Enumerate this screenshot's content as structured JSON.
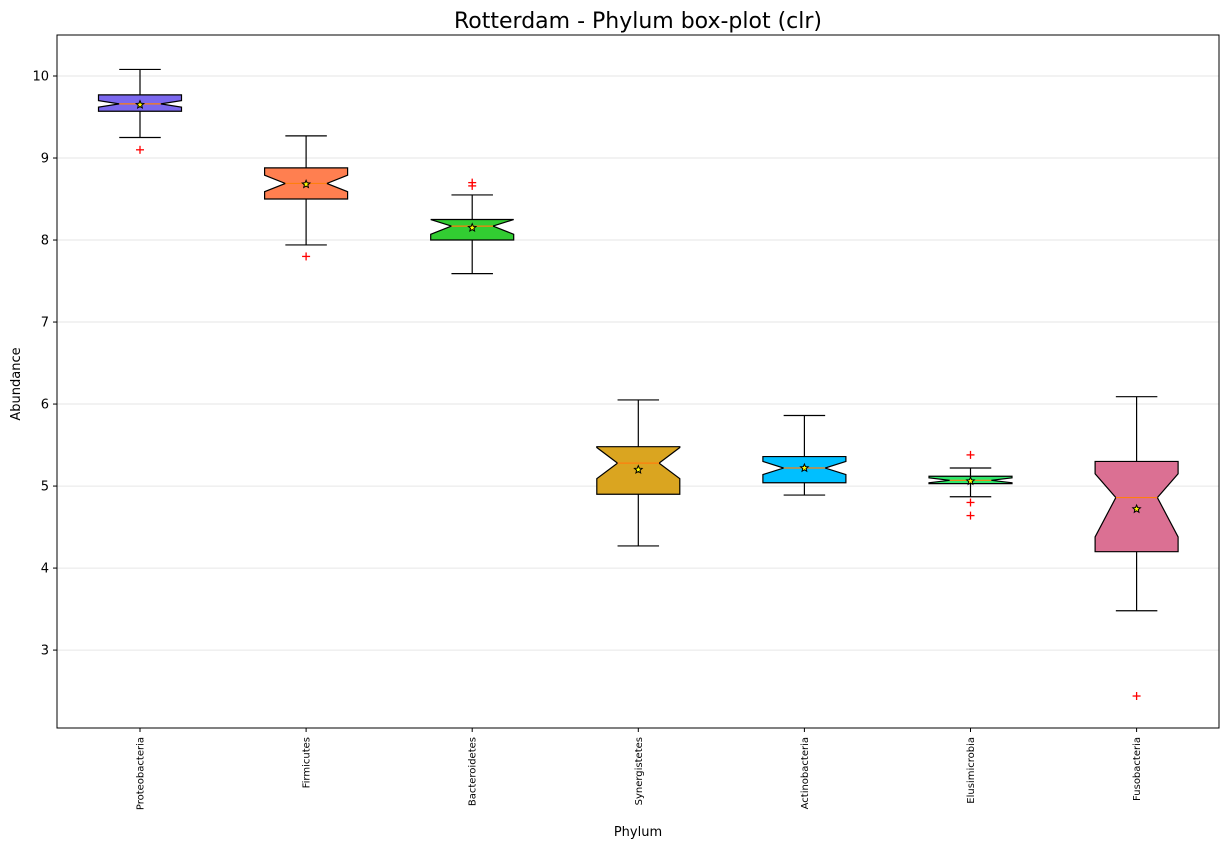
{
  "chart_data": {
    "type": "boxplot",
    "title": "Rotterdam - Phylum box-plot (clr)",
    "xlabel": "Phylum",
    "ylabel": "Abundance",
    "ylim": [
      2.05,
      10.5
    ],
    "yticks": [
      3,
      4,
      5,
      6,
      7,
      8,
      9,
      10
    ],
    "grid": "horizontal",
    "notched": true,
    "series": [
      {
        "category": "Proteobacteria",
        "color": "#7B68EE",
        "whisker_low": 9.25,
        "q1": 9.57,
        "median": 9.66,
        "q3": 9.77,
        "whisker_high": 10.08,
        "mean": 9.65,
        "outliers": [
          9.1
        ],
        "notch": [
          9.62,
          9.7
        ]
      },
      {
        "category": "Firmicutes",
        "color": "#FF7F50",
        "whisker_low": 7.94,
        "q1": 8.5,
        "median": 8.69,
        "q3": 8.88,
        "whisker_high": 9.27,
        "mean": 8.68,
        "outliers": [
          7.8
        ],
        "notch": [
          8.59,
          8.79
        ]
      },
      {
        "category": "Bacteroidetes",
        "color": "#32CD32",
        "whisker_low": 7.59,
        "q1": 8.0,
        "median": 8.17,
        "q3": 8.25,
        "whisker_high": 8.55,
        "mean": 8.15,
        "outliers": [
          8.66,
          8.7
        ],
        "notch": [
          8.07,
          8.26
        ]
      },
      {
        "category": "Synergistetes",
        "color": "#DAA520",
        "whisker_low": 4.27,
        "q1": 4.9,
        "median": 5.28,
        "q3": 5.48,
        "whisker_high": 6.05,
        "mean": 5.2,
        "outliers": [],
        "notch": [
          5.09,
          5.47
        ]
      },
      {
        "category": "Actinobacteria",
        "color": "#00BFFF",
        "whisker_low": 4.89,
        "q1": 5.04,
        "median": 5.22,
        "q3": 5.36,
        "whisker_high": 5.86,
        "mean": 5.22,
        "outliers": [],
        "notch": [
          5.14,
          5.3
        ]
      },
      {
        "category": "Elusimicrobia",
        "color": "#2EE86B",
        "whisker_low": 4.87,
        "q1": 5.03,
        "median": 5.07,
        "q3": 5.12,
        "whisker_high": 5.22,
        "mean": 5.06,
        "outliers": [
          5.38,
          4.8,
          4.64
        ],
        "notch": [
          5.04,
          5.1
        ]
      },
      {
        "category": "Fusobacteria",
        "color": "#DB7093",
        "whisker_low": 3.48,
        "q1": 4.2,
        "median": 4.86,
        "q3": 5.3,
        "whisker_high": 6.09,
        "mean": 4.72,
        "outliers": [
          2.44
        ],
        "notch": [
          4.38,
          5.15
        ]
      }
    ]
  }
}
